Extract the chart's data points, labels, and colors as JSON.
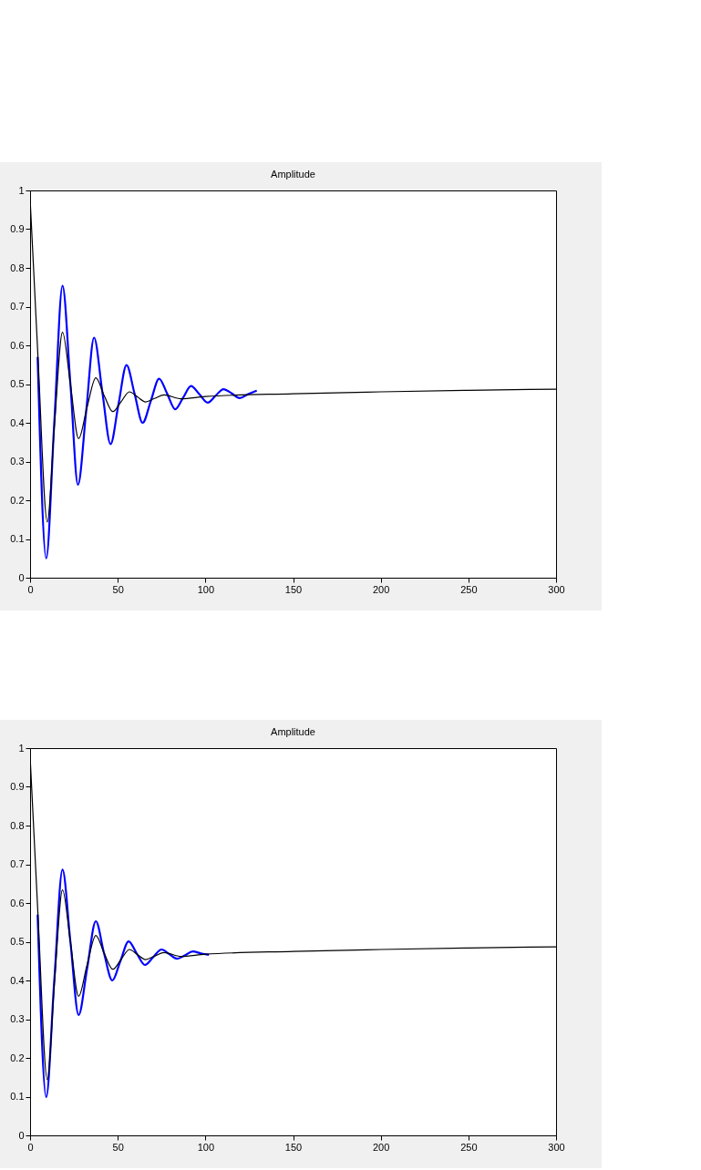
{
  "chart_data": [
    {
      "type": "line",
      "title": "Amplitude",
      "xlim": [
        0,
        300
      ],
      "ylim": [
        0,
        1
      ],
      "xticks": [
        0,
        50,
        100,
        150,
        200,
        250,
        300
      ],
      "yticks": [
        0,
        0.1,
        0.2,
        0.3,
        0.4,
        0.5,
        0.6,
        0.7,
        0.8,
        0.9,
        1
      ],
      "grid": false,
      "series": [
        {
          "color": "#0000ff",
          "line_style": "solid",
          "x": [
            4.3,
            9.2,
            13.8,
            18.5,
            23,
            27.3,
            32,
            36.5,
            41.2,
            45.9,
            50.5,
            55,
            59.6,
            64.2,
            68.9,
            73.6,
            78.2,
            82.8,
            87.3,
            91.8,
            96.5,
            101.3,
            105.8,
            110.3,
            115,
            119.5,
            124.4,
            129.3
          ],
          "values": [
            0.57,
            0.05,
            0.4,
            0.754,
            0.5,
            0.24,
            0.43,
            0.62,
            0.48,
            0.345,
            0.45,
            0.549,
            0.475,
            0.4,
            0.457,
            0.514,
            0.475,
            0.435,
            0.465,
            0.495,
            0.474,
            0.452,
            0.47,
            0.487,
            0.476,
            0.464,
            0.474,
            0.483
          ]
        },
        {
          "color": "#000000",
          "line_style": "solid",
          "x": [
            0,
            4.5,
            9.8,
            14,
            18.5,
            23,
            27.7,
            32.5,
            37.5,
            42.3,
            47.2,
            52,
            56.6,
            61.2,
            65.8,
            71,
            76.5,
            86,
            100,
            150,
            200,
            250,
            300
          ],
          "values": [
            0.98,
            0.57,
            0.144,
            0.4,
            0.634,
            0.5,
            0.359,
            0.44,
            0.516,
            0.47,
            0.429,
            0.455,
            0.48,
            0.467,
            0.454,
            0.463,
            0.472,
            0.462,
            0.468,
            0.475,
            0.48,
            0.484,
            0.487
          ]
        }
      ]
    },
    {
      "type": "line",
      "title": "Amplitude",
      "xlim": [
        0,
        300
      ],
      "ylim": [
        0,
        1
      ],
      "xticks": [
        0,
        50,
        100,
        150,
        200,
        250,
        300
      ],
      "yticks": [
        0,
        0.1,
        0.2,
        0.3,
        0.4,
        0.5,
        0.6,
        0.7,
        0.8,
        0.9,
        1
      ],
      "grid": false,
      "series": [
        {
          "color": "#0000ff",
          "line_style": "solid",
          "x": [
            4.3,
            9.2,
            13.8,
            18.5,
            23,
            27.7,
            32.5,
            37.5,
            42.2,
            46.9,
            51.5,
            56.2,
            60.8,
            65.5,
            70.2,
            75,
            79.4,
            83.8,
            88.3,
            92.8,
            97.4,
            102
          ],
          "values": [
            0.57,
            0.099,
            0.4,
            0.686,
            0.5,
            0.311,
            0.43,
            0.553,
            0.47,
            0.4,
            0.45,
            0.501,
            0.47,
            0.44,
            0.46,
            0.48,
            0.468,
            0.456,
            0.465,
            0.475,
            0.47,
            0.466
          ]
        },
        {
          "color": "#000000",
          "line_style": "solid",
          "x": [
            0,
            4.5,
            9.8,
            14,
            18.5,
            23,
            27.7,
            32.5,
            37.5,
            42.3,
            47.2,
            52,
            56.6,
            61.2,
            65.8,
            71,
            76.5,
            86,
            100,
            150,
            200,
            250,
            300
          ],
          "values": [
            0.98,
            0.57,
            0.144,
            0.4,
            0.634,
            0.5,
            0.359,
            0.44,
            0.516,
            0.47,
            0.429,
            0.455,
            0.48,
            0.467,
            0.454,
            0.463,
            0.472,
            0.462,
            0.468,
            0.475,
            0.48,
            0.484,
            0.487
          ]
        }
      ]
    }
  ]
}
